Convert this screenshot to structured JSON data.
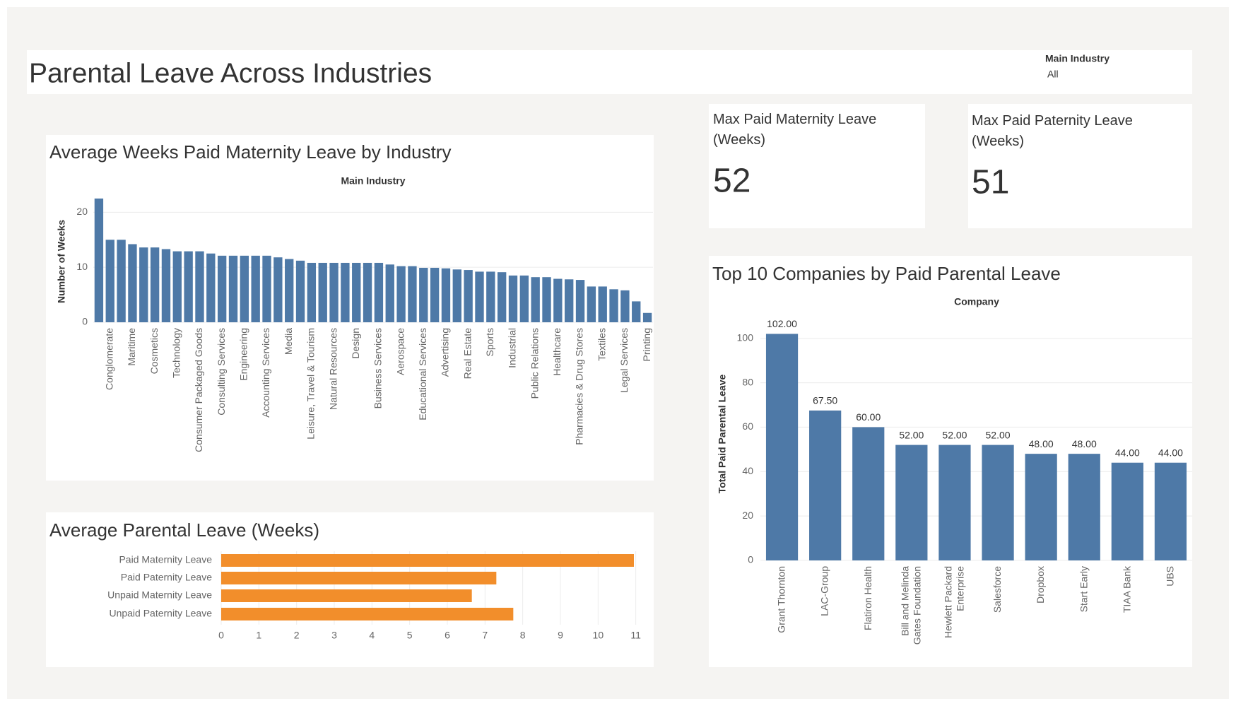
{
  "header": {
    "title": "Parental Leave Across Industries",
    "filter_label": "Main Industry",
    "filter_value": "All"
  },
  "kpis": [
    {
      "label": "Max Paid Maternity Leave (Weeks)",
      "value": 52
    },
    {
      "label": "Max Paid Paternity Leave (Weeks)",
      "value": 51
    }
  ],
  "chart_data": [
    {
      "type": "bar",
      "title": "Average Weeks Paid Maternity Leave by Industry",
      "x_label": "Main Industry",
      "y_label": "Number of Weeks",
      "categories": [
        null,
        "Conglomerate",
        null,
        "Maritime",
        null,
        "Cosmetics",
        null,
        "Technology",
        null,
        "Consumer Packaged Goods",
        null,
        "Consulting Services",
        null,
        "Engineering",
        null,
        "Accounting Services",
        null,
        "Media",
        null,
        "Leisure, Travel & Tourism",
        null,
        "Natural Resources",
        null,
        "Design",
        null,
        "Business Services",
        null,
        "Aerospace",
        null,
        "Educational Services",
        null,
        "Advertising",
        null,
        "Real Estate",
        null,
        "Sports",
        null,
        "Industrial",
        null,
        "Public Relations",
        null,
        "Healthcare",
        null,
        "Pharmacies & Drug Stores",
        null,
        "Textiles",
        null,
        "Legal Services",
        null,
        "Printing"
      ],
      "values": [
        22.5,
        15.0,
        15.0,
        14.2,
        13.6,
        13.6,
        13.3,
        12.9,
        12.9,
        12.9,
        12.5,
        12.1,
        12.1,
        12.1,
        12.1,
        12.1,
        11.8,
        11.5,
        11.2,
        10.8,
        10.8,
        10.8,
        10.8,
        10.8,
        10.8,
        10.8,
        10.5,
        10.2,
        10.2,
        9.9,
        9.9,
        9.8,
        9.6,
        9.5,
        9.2,
        9.2,
        9.1,
        8.5,
        8.5,
        8.2,
        8.2,
        7.9,
        7.8,
        7.7,
        6.5,
        6.5,
        6.0,
        5.8,
        3.8,
        1.7
      ],
      "color": "#4e79a7",
      "ylim": [
        0,
        23
      ],
      "yticks": [
        0,
        10,
        20
      ],
      "grid": true
    },
    {
      "type": "hbar",
      "title": "Average Parental Leave (Weeks)",
      "categories": [
        "Paid Maternity Leave",
        "Paid Paternity Leave",
        "Unpaid Maternity Leave",
        "Unpaid Paternity Leave"
      ],
      "values": [
        10.95,
        7.3,
        6.65,
        7.75
      ],
      "color": "#f28e2b",
      "xlim": [
        0,
        11.4
      ],
      "xticks": [
        0,
        1,
        2,
        3,
        4,
        5,
        6,
        7,
        8,
        9,
        10,
        11
      ],
      "grid": true
    },
    {
      "type": "bar",
      "title": "Top 10 Companies by Paid Parental Leave",
      "x_label": "Company",
      "y_label": "Total Paid Parental Leave",
      "categories": [
        "Grant Thornton",
        "LAC-Group",
        "Flatiron Health",
        "Bill and Melinda Gates Foundation",
        "Hewlett Packard Enterprise",
        "Salesforce",
        "Dropbox",
        "Start Early",
        "TIAA Bank",
        "UBS"
      ],
      "values": [
        102,
        67.5,
        60,
        52,
        52,
        52,
        48,
        48,
        44,
        44
      ],
      "value_labels": [
        "102.00",
        "67.50",
        "60.00",
        "52.00",
        "52.00",
        "52.00",
        "48.00",
        "48.00",
        "44.00",
        "44.00"
      ],
      "color": "#4e79a7",
      "ylim": [
        0,
        112
      ],
      "yticks": [
        0,
        20,
        40,
        60,
        80,
        100
      ],
      "grid": true
    }
  ]
}
